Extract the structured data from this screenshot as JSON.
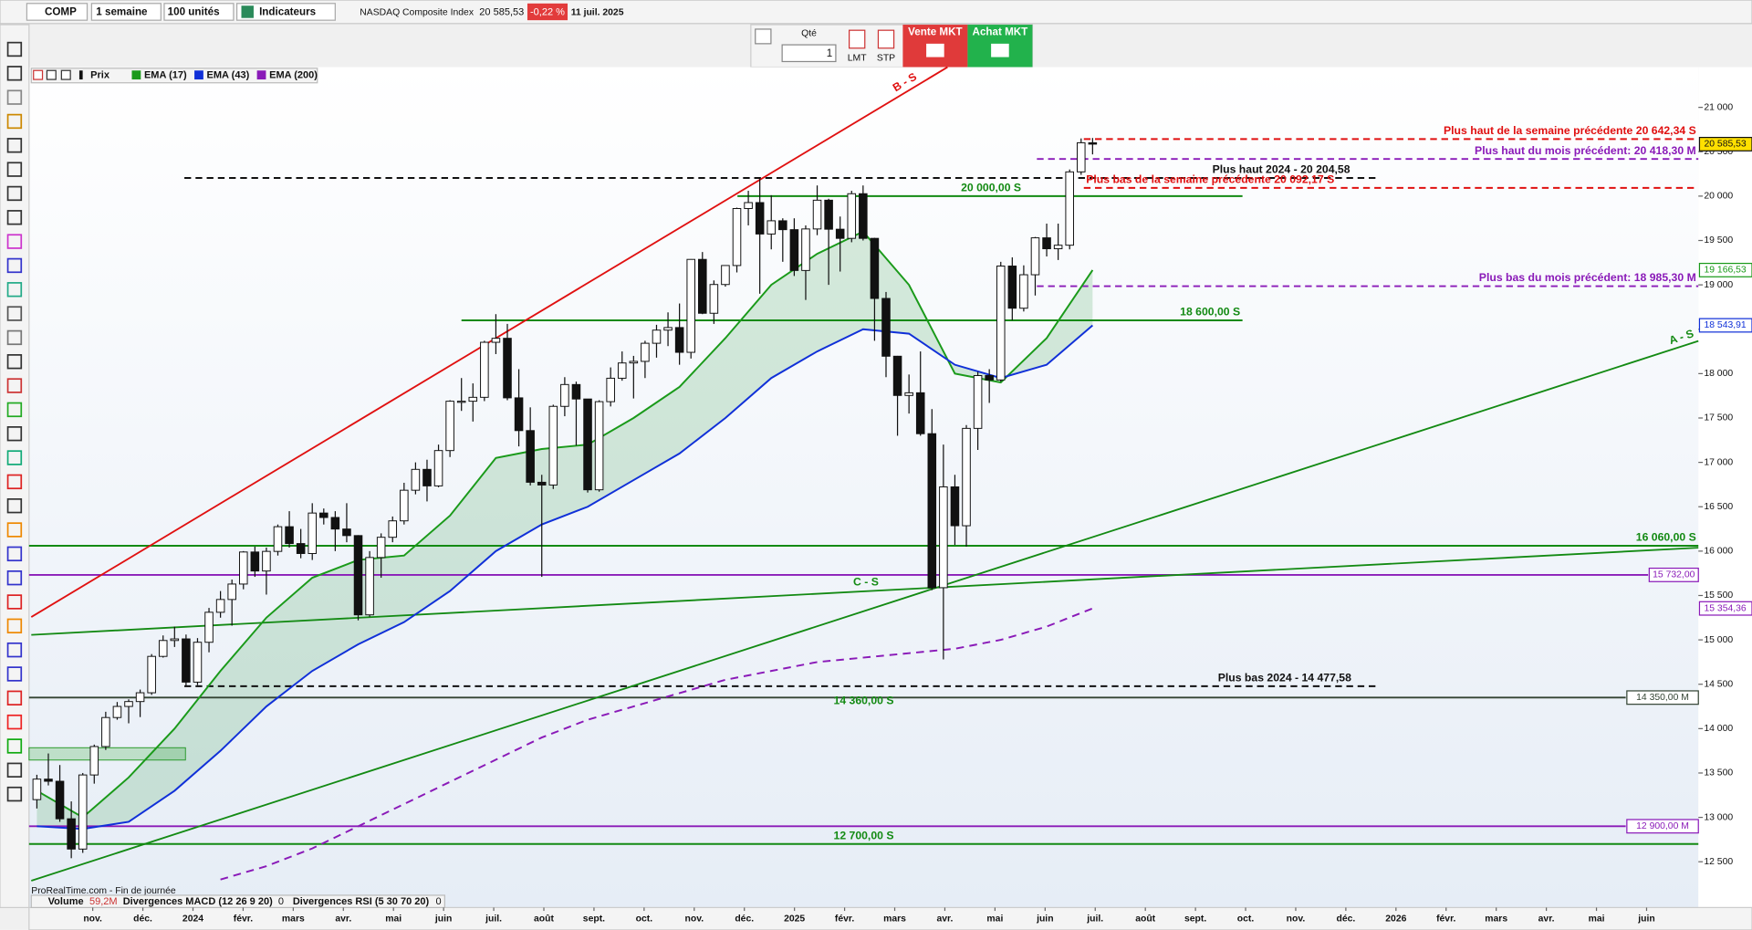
{
  "toolbar": {
    "symbol": "COMP",
    "period": "1 semaine",
    "units": "100 unités",
    "indicators": "Indicateurs",
    "instrument": "NASDAQ Composite Index",
    "price": "20 585,53",
    "change": "-0,22 %",
    "date": "11 juil. 2025"
  },
  "order_panel": {
    "qty_label": "Qté",
    "qty": "1",
    "lmt": "LMT",
    "stp": "STP",
    "sell": "Vente MKT",
    "buy": "Achat MKT"
  },
  "chart_data": {
    "type": "candlestick",
    "price_label": "Prix",
    "x_labels": [
      "nov.",
      "déc.",
      "2024",
      "févr.",
      "mars",
      "avr.",
      "mai",
      "juin",
      "juil.",
      "août",
      "sept.",
      "oct.",
      "nov.",
      "déc.",
      "2025",
      "févr.",
      "mars",
      "avr.",
      "mai",
      "juin",
      "juil.",
      "août",
      "sept.",
      "oct.",
      "nov.",
      "déc.",
      "2026",
      "févr.",
      "mars",
      "avr.",
      "mai",
      "juin"
    ],
    "open": [
      13200,
      13431,
      13407,
      12984,
      12643,
      13478,
      13798,
      14125,
      14250,
      14305,
      14404,
      14814,
      14993,
      15011,
      14524,
      14973,
      15311,
      15455,
      15629,
      15990,
      15776,
      15997,
      16275,
      16085,
      15973,
      16429,
      16379,
      16249,
      16175,
      15282,
      15928,
      16156,
      16341,
      16686,
      16921,
      16735,
      17133,
      17689,
      17689,
      17733,
      18353,
      18398,
      17727,
      17358,
      16776,
      16745,
      17631,
      17877,
      17714,
      16691,
      17684,
      17948,
      18120,
      18138,
      18342,
      18490,
      18519,
      18240,
      19287,
      18680,
      19004,
      19218,
      19860,
      19927,
      19573,
      19722,
      19622,
      19162,
      19630,
      19954,
      19627,
      19524,
      20027,
      19524,
      18847,
      18196,
      17754,
      17784,
      17323,
      15588,
      16724,
      16286,
      17383,
      17978,
      17929,
      19212,
      18737,
      19114,
      19530,
      19407,
      19447,
      20273,
      20601
    ],
    "high": [
      13480,
      13720,
      13590,
      13180,
      13500,
      13820,
      14190,
      14300,
      14330,
      14440,
      14840,
      15050,
      15150,
      15060,
      15020,
      15360,
      15550,
      15680,
      16000,
      16050,
      16040,
      16300,
      16450,
      16250,
      16540,
      16480,
      16450,
      16540,
      16180,
      16000,
      16200,
      16390,
      16770,
      17000,
      17030,
      17200,
      17700,
      17950,
      17890,
      18370,
      18670,
      18560,
      18050,
      17620,
      16860,
      17650,
      17960,
      17910,
      17710,
      17700,
      18070,
      18250,
      18200,
      18370,
      18550,
      18690,
      18790,
      19290,
      19370,
      19050,
      19220,
      19870,
      20060,
      20204.58,
      20010,
      19750,
      19750,
      19670,
      20120,
      19970,
      19770,
      20060,
      20120,
      19530,
      18920,
      18200,
      17990,
      18250,
      17600,
      17200,
      16860,
      17420,
      18020,
      18050,
      19260,
      19310,
      19220,
      19540,
      19690,
      19690,
      20300,
      20650,
      20655
    ],
    "low": [
      13100,
      13360,
      12950,
      12540,
      12600,
      13380,
      13760,
      14100,
      14060,
      14130,
      14380,
      14800,
      14920,
      14480,
      14490,
      14860,
      15250,
      15160,
      15570,
      15710,
      15510,
      15950,
      16040,
      15920,
      15900,
      16300,
      16000,
      16100,
      15220,
      15260,
      15700,
      16100,
      16300,
      16640,
      16560,
      16720,
      17060,
      17580,
      17460,
      17690,
      18220,
      17700,
      17180,
      16740,
      15710,
      16700,
      17520,
      17190,
      16660,
      16670,
      17630,
      17920,
      17720,
      17950,
      18180,
      18310,
      18100,
      18170,
      18670,
      18560,
      18980,
      19140,
      19670,
      18900,
      19400,
      19260,
      19100,
      18830,
      19560,
      19000,
      19150,
      19480,
      19500,
      18370,
      17960,
      17300,
      17550,
      17300,
      15560,
      14780,
      16070,
      16050,
      17140,
      17670,
      17910,
      18600,
      18700,
      18880,
      19320,
      19280,
      19400,
      20240,
      20470
    ],
    "close": [
      13431,
      13407,
      12984,
      12643,
      13478,
      13798,
      14125,
      14250,
      14305,
      14404,
      14814,
      14993,
      15011,
      14524,
      14973,
      15311,
      15455,
      15629,
      15990,
      15776,
      15997,
      16275,
      16085,
      15973,
      16429,
      16379,
      16249,
      16175,
      15282,
      15928,
      16156,
      16341,
      16686,
      16921,
      16735,
      17133,
      17689,
      17689,
      17733,
      18353,
      18398,
      17727,
      17358,
      16776,
      16745,
      17631,
      17877,
      17714,
      16691,
      17684,
      17948,
      18120,
      18138,
      18342,
      18490,
      18519,
      18240,
      19287,
      18680,
      19004,
      19218,
      19860,
      19927,
      19573,
      19722,
      19622,
      19162,
      19630,
      19954,
      19627,
      19524,
      20027,
      19524,
      18847,
      18196,
      17754,
      17784,
      17323,
      15588,
      16724,
      16286,
      17383,
      17978,
      17929,
      19212,
      18737,
      19114,
      19530,
      19407,
      19447,
      20273,
      20601,
      20585.53
    ],
    "series": [
      {
        "name": "EMA (17)",
        "color": "#1a9a1a",
        "dash": false,
        "values": [
          13300,
          13000,
          13450,
          14000,
          14650,
          15250,
          15700,
          15900,
          15950,
          16400,
          17050,
          17150,
          17200,
          17500,
          17850,
          18400,
          19000,
          19350,
          19600,
          19000,
          18000,
          17900,
          18400,
          19166.53
        ]
      },
      {
        "name": "EMA (43)",
        "color": "#1030d8",
        "dash": false,
        "values": [
          12900,
          12870,
          12950,
          13300,
          13750,
          14250,
          14650,
          14950,
          15200,
          15550,
          16000,
          16300,
          16500,
          16800,
          17100,
          17500,
          17950,
          18250,
          18500,
          18450,
          18100,
          17950,
          18100,
          18543.91
        ]
      },
      {
        "name": "EMA (200)",
        "color": "#8a1ab8",
        "dash": true,
        "values": [
          null,
          null,
          null,
          null,
          12300,
          12450,
          12650,
          12900,
          13150,
          13400,
          13650,
          13900,
          14100,
          14250,
          14400,
          14550,
          14650,
          14750,
          14800,
          14850,
          14900,
          15000,
          15150,
          15354.36
        ]
      }
    ],
    "levels": [
      {
        "value": 20642.34,
        "label": "Plus haut de la semaine précédente  20 642,34 S",
        "color": "#e01010",
        "dash": true
      },
      {
        "value": 20418.3,
        "label": "Plus haut du mois précédent: 20 418,30 M",
        "color": "#8a1ab8",
        "dash": true
      },
      {
        "value": 20204.58,
        "label": "Plus haut 2024 -  20 204,58",
        "color": "#111111",
        "dash": true
      },
      {
        "value": 20092.17,
        "label": "Plus bas de la semaine précédente  20 092,17 S",
        "color": "#e01010",
        "dash": true
      },
      {
        "value": 20000,
        "label": "20 000,00 S",
        "color": "#138a13",
        "dash": false
      },
      {
        "value": 18985.3,
        "label": "Plus bas du mois précédent: 18 985,30 M",
        "color": "#8a1ab8",
        "dash": true
      },
      {
        "value": 18600,
        "label": "18 600,00 S",
        "color": "#138a13",
        "dash": false
      },
      {
        "value": 16060,
        "label": "16 060,00 S",
        "color": "#138a13",
        "dash": false
      },
      {
        "value": 15732,
        "label": "15 732,00",
        "color": "#8a1ab8",
        "dash": false
      },
      {
        "value": 14477.58,
        "label": "Plus bas 2024 -  14 477,58",
        "color": "#111111",
        "dash": true
      },
      {
        "value": 14350,
        "label": "14 350,00 M",
        "color": "#334433",
        "dash": false
      },
      {
        "value": 14360,
        "label": "14 360,00 S",
        "color": "#138a13",
        "dash": false
      },
      {
        "value": 12900,
        "label": "12 900,00 M",
        "color": "#8a1ab8",
        "dash": false
      },
      {
        "value": 12700,
        "label": "12 700,00 S",
        "color": "#138a13",
        "dash": false
      }
    ],
    "trendlines": [
      "B - S",
      "A - S",
      "C - S"
    ],
    "price_tags": [
      {
        "value": 20585.53,
        "label": "20 585,53",
        "color": "#ffe000"
      },
      {
        "value": 19166.53,
        "label": "19 166,53",
        "color": "#1a9a1a"
      },
      {
        "value": 18543.91,
        "label": "18 543,91",
        "color": "#1030d8"
      },
      {
        "value": 15354.36,
        "label": "15 354,36",
        "color": "#8a1ab8"
      }
    ],
    "ylim": [
      11984,
      21453
    ],
    "yticks": [
      {
        "value": 12500,
        "label": "12 500"
      },
      {
        "value": 13000,
        "label": "13 000"
      },
      {
        "value": 13500,
        "label": "13 500"
      },
      {
        "value": 14000,
        "label": "14 000"
      },
      {
        "value": 14500,
        "label": "14 500"
      },
      {
        "value": 15000,
        "label": "15 000"
      },
      {
        "value": 15500,
        "label": "15 500"
      },
      {
        "value": 16000,
        "label": "16 000"
      },
      {
        "value": 16500,
        "label": "16 500"
      },
      {
        "value": 17000,
        "label": "17 000"
      },
      {
        "value": 17500,
        "label": "17 500"
      },
      {
        "value": 18000,
        "label": "18 000"
      },
      {
        "value": 18500,
        "label": "18 500"
      },
      {
        "value": 19000,
        "label": "19 000"
      },
      {
        "value": 19500,
        "label": "19 500"
      },
      {
        "value": 20000,
        "label": "20 000"
      },
      {
        "value": 20500,
        "label": "20 500"
      },
      {
        "value": 21000,
        "label": "21 000"
      }
    ]
  },
  "footer": {
    "source": "ProRealTime.com - Fin de journée",
    "volume": "Volume",
    "volume_value": "59,2M",
    "macd": "Divergences MACD (12 26 9 20)",
    "macd_value": "0",
    "rsi": "Divergences RSI (5 30 70 20)",
    "rsi_value": "0"
  }
}
